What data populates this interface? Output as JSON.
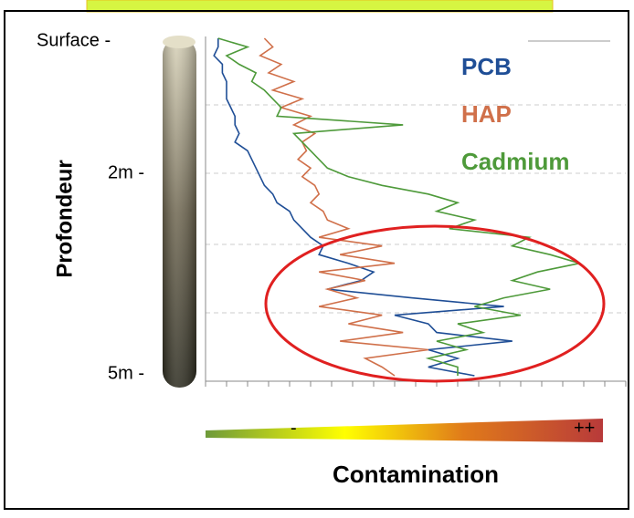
{
  "chart_data": {
    "type": "line",
    "title": "Contamination",
    "y_label": "Profondeur",
    "depth_labels": [
      "Surface -",
      "2m -",
      "5m -"
    ],
    "scale_labels": [
      "-",
      "++"
    ],
    "xlim": [
      0,
      100
    ],
    "categories": [
      null,
      null,
      null,
      null,
      null,
      null,
      null,
      null,
      null,
      null,
      null,
      null,
      null,
      null,
      null,
      null,
      null,
      null,
      null,
      null,
      null,
      null,
      null,
      null,
      null,
      null,
      null,
      null,
      null,
      null,
      null,
      null,
      null,
      null,
      null,
      null,
      null,
      null,
      null,
      null
    ],
    "series": [
      {
        "name": "PCB",
        "color": "#1f4e96",
        "values": [
          3,
          3,
          2,
          4,
          4,
          5,
          5,
          5,
          6,
          7,
          7,
          8,
          7,
          10,
          11,
          12,
          13,
          14,
          16,
          17,
          20,
          21,
          23,
          25,
          28,
          27,
          34,
          40,
          37,
          29,
          49,
          71,
          45,
          53,
          55,
          73,
          53,
          60,
          53,
          64
        ]
      },
      {
        "name": "HAP",
        "color": "#d0704a",
        "values": [
          14,
          16,
          13,
          18,
          15,
          21,
          16,
          23,
          18,
          25,
          21,
          26,
          23,
          24,
          22,
          25,
          23,
          26,
          27,
          25,
          28,
          29,
          34,
          27,
          42,
          32,
          45,
          27,
          38,
          29,
          36,
          27,
          42,
          34,
          47,
          32,
          53,
          38,
          42,
          45
        ]
      },
      {
        "name": "Cadmium",
        "color": "#4e9a3a",
        "values": [
          3,
          10,
          5,
          8,
          12,
          11,
          14,
          16,
          18,
          17,
          47,
          21,
          23,
          25,
          27,
          29,
          34,
          42,
          53,
          60,
          55,
          64,
          58,
          77,
          73,
          82,
          89,
          79,
          73,
          82,
          71,
          64,
          75,
          60,
          66,
          55,
          62,
          53,
          60,
          60
        ]
      }
    ]
  }
}
